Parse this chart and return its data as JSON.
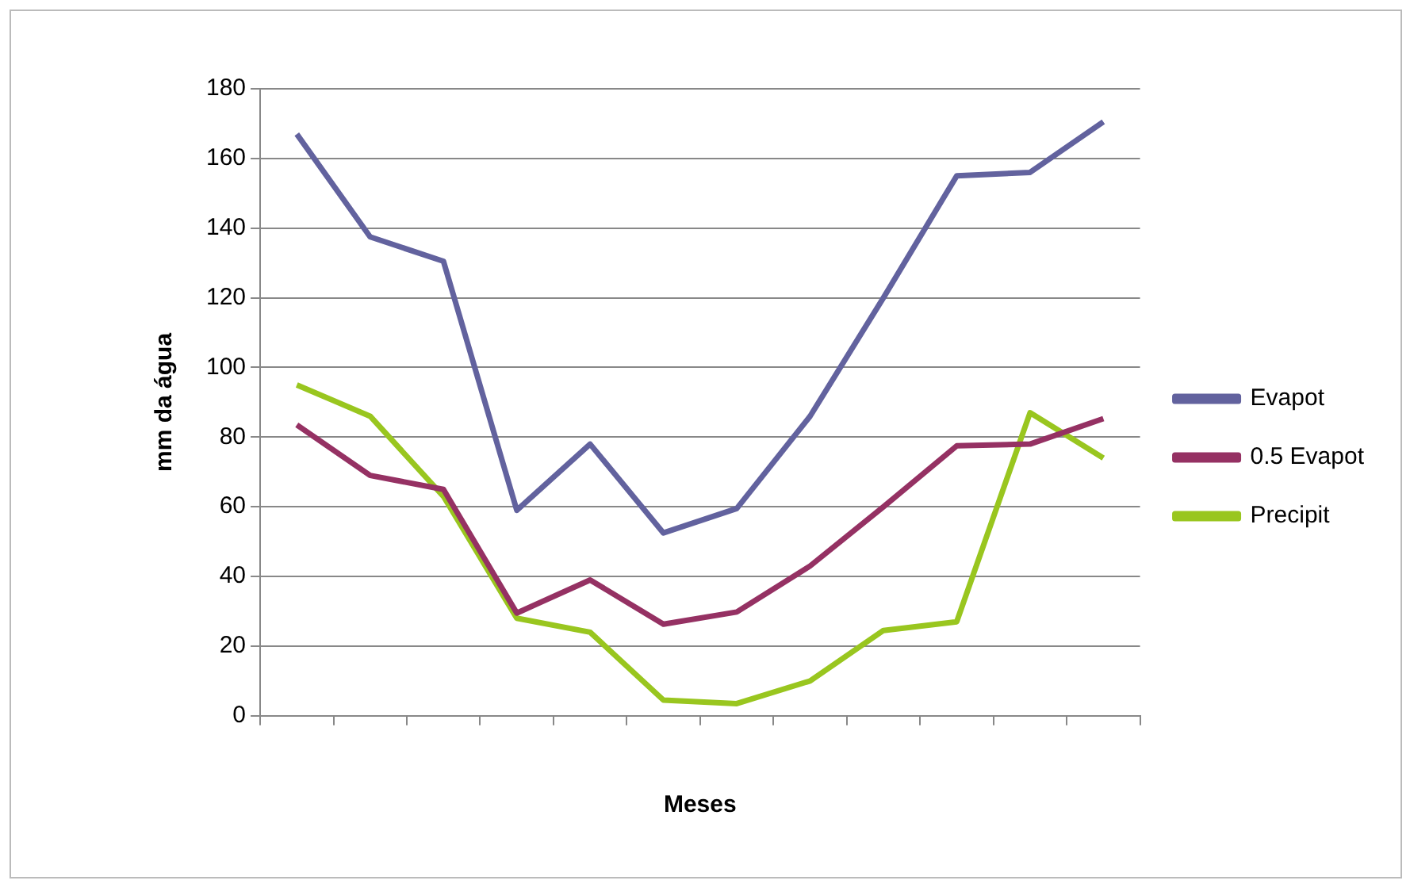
{
  "chart_data": {
    "type": "line",
    "xlabel": "Meses",
    "ylabel": "mm da água",
    "categories": [
      null,
      null,
      null,
      null,
      null,
      null,
      null,
      null,
      null,
      null,
      null,
      null
    ],
    "ylim": [
      0,
      180
    ],
    "yticks": [
      0,
      20,
      40,
      60,
      80,
      100,
      120,
      140,
      160,
      180
    ],
    "grid": "y",
    "legend": "right",
    "marker": "none",
    "line_style": "solid",
    "series": [
      {
        "name": "Evapot",
        "color": "#62629e",
        "values": [
          167,
          137.5,
          130.5,
          59,
          78,
          52.5,
          59.5,
          86,
          120,
          155,
          156,
          170.5
        ]
      },
      {
        "name": "0.5 Evapot",
        "color": "#953163",
        "values": [
          83.5,
          69,
          65,
          29.5,
          39,
          26.3,
          29.8,
          43,
          60,
          77.5,
          78,
          85.3
        ]
      },
      {
        "name": "Precipit",
        "color": "#99c61f",
        "values": [
          95,
          86,
          63,
          28,
          24,
          4.5,
          3.5,
          10,
          24.5,
          27,
          87,
          74
        ]
      }
    ]
  }
}
